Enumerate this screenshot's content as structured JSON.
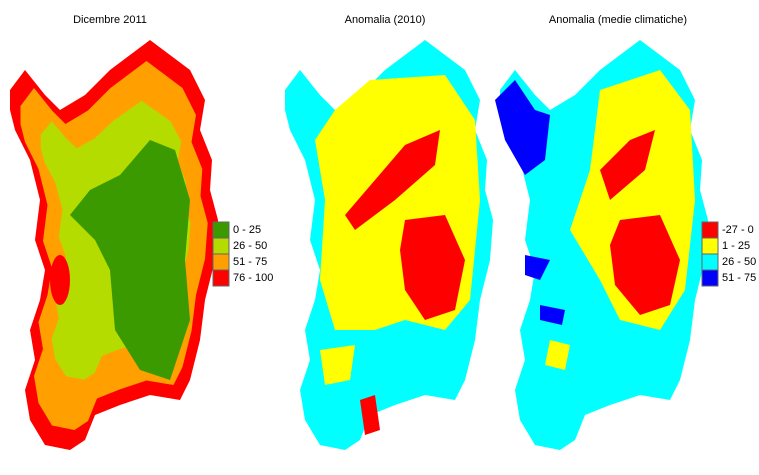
{
  "maps": [
    {
      "title": "Dicembre 2011",
      "legend": [
        {
          "label": "0 - 25",
          "color": "#3a9a00"
        },
        {
          "label": "26 - 50",
          "color": "#b4dc00"
        },
        {
          "label": "51 - 75",
          "color": "#ffa000"
        },
        {
          "label": "76 - 100",
          "color": "#ff0000"
        }
      ]
    },
    {
      "title": "Anomalia (2010)"
    },
    {
      "title": "Anomalia (medie climatiche)",
      "legend": [
        {
          "label": "-27 - 0",
          "color": "#ff0000"
        },
        {
          "label": "1 - 25",
          "color": "#ffff00"
        },
        {
          "label": "26 - 50",
          "color": "#00ffff"
        },
        {
          "label": "51 - 75",
          "color": "#0000ff"
        }
      ]
    }
  ]
}
